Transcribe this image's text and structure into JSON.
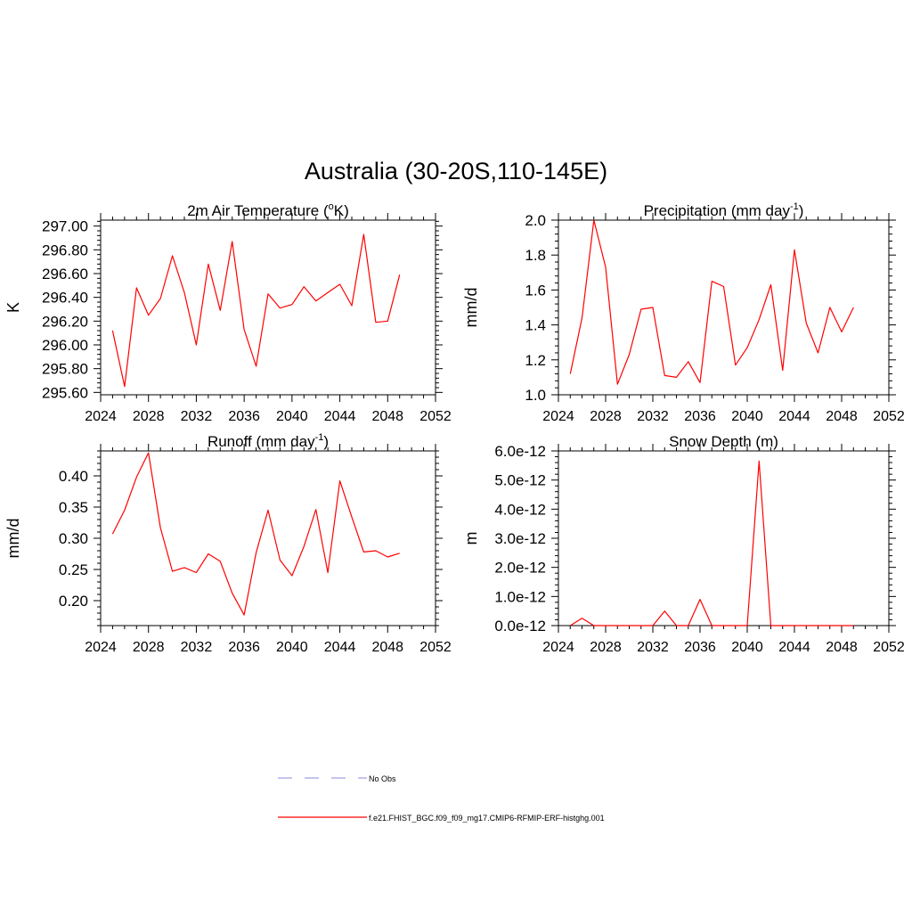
{
  "figure": {
    "title": "Australia (30-20S,110-145E)"
  },
  "legend": {
    "items": [
      {
        "label": "No Obs",
        "color": "#a0a0e6",
        "dash": true
      },
      {
        "label": "f.e21.FHIST_BGC.f09_f09_mg17.CMIP6-RFMIP-ERF-histghg.001",
        "color": "#ff0000",
        "dash": false
      }
    ]
  },
  "chart_data": [
    {
      "type": "line",
      "title_main": "2m Air Temperature (",
      "title_sup": "o",
      "title_tail": "K)",
      "ylabel": "K",
      "xlim": [
        2024,
        2052
      ],
      "ylim": [
        295.58,
        297.05
      ],
      "xticks": [
        "2024",
        "2028",
        "2032",
        "2036",
        "2040",
        "2044",
        "2048",
        "2052"
      ],
      "yticks": [
        {
          "v": 295.6,
          "label": "295.60"
        },
        {
          "v": 295.8,
          "label": "295.80"
        },
        {
          "v": 296.0,
          "label": "296.00"
        },
        {
          "v": 296.2,
          "label": "296.20"
        },
        {
          "v": 296.4,
          "label": "296.40"
        },
        {
          "v": 296.6,
          "label": "296.60"
        },
        {
          "v": 296.8,
          "label": "296.80"
        },
        {
          "v": 297.0,
          "label": "297.00"
        }
      ],
      "series": [
        {
          "color": "#ff0000",
          "x": [
            2025,
            2026,
            2027,
            2028,
            2029,
            2030,
            2031,
            2032,
            2033,
            2034,
            2035,
            2036,
            2037,
            2038,
            2039,
            2040,
            2041,
            2042,
            2043,
            2044,
            2045,
            2046,
            2047,
            2048,
            2049
          ],
          "y": [
            296.12,
            295.65,
            296.48,
            296.25,
            296.39,
            296.75,
            296.44,
            296.0,
            296.68,
            296.29,
            296.87,
            296.13,
            295.82,
            296.43,
            296.31,
            296.34,
            296.49,
            296.37,
            296.44,
            296.51,
            296.33,
            296.93,
            296.19,
            296.2,
            296.59
          ]
        }
      ]
    },
    {
      "type": "line",
      "title_main": "Precipitation (mm day",
      "title_sup": "-1",
      "title_tail": ")",
      "ylabel": "mm/d",
      "xlim": [
        2024,
        2052
      ],
      "ylim": [
        1.0,
        2.0
      ],
      "xticks": [
        "2024",
        "2028",
        "2032",
        "2036",
        "2040",
        "2044",
        "2048",
        "2052"
      ],
      "yticks": [
        {
          "v": 1.0,
          "label": "1.0"
        },
        {
          "v": 1.2,
          "label": "1.2"
        },
        {
          "v": 1.4,
          "label": "1.4"
        },
        {
          "v": 1.6,
          "label": "1.6"
        },
        {
          "v": 1.8,
          "label": "1.8"
        },
        {
          "v": 2.0,
          "label": "2.0"
        }
      ],
      "series": [
        {
          "color": "#ff0000",
          "x": [
            2025,
            2026,
            2027,
            2028,
            2029,
            2030,
            2031,
            2032,
            2033,
            2034,
            2035,
            2036,
            2037,
            2038,
            2039,
            2040,
            2041,
            2042,
            2043,
            2044,
            2045,
            2046,
            2047,
            2048,
            2049
          ],
          "y": [
            1.12,
            1.44,
            2.0,
            1.73,
            1.06,
            1.23,
            1.49,
            1.5,
            1.11,
            1.1,
            1.19,
            1.07,
            1.65,
            1.62,
            1.17,
            1.27,
            1.43,
            1.63,
            1.14,
            1.83,
            1.41,
            1.24,
            1.5,
            1.36,
            1.5
          ]
        }
      ]
    },
    {
      "type": "line",
      "title_main": "Runoff (mm day",
      "title_sup": "-1",
      "title_tail": ")",
      "ylabel": "mm/d",
      "xlim": [
        2024,
        2052
      ],
      "ylim": [
        0.16,
        0.44
      ],
      "xticks": [
        "2024",
        "2028",
        "2032",
        "2036",
        "2040",
        "2044",
        "2048",
        "2052"
      ],
      "yticks": [
        {
          "v": 0.2,
          "label": "0.20"
        },
        {
          "v": 0.25,
          "label": "0.25"
        },
        {
          "v": 0.3,
          "label": "0.30"
        },
        {
          "v": 0.35,
          "label": "0.35"
        },
        {
          "v": 0.4,
          "label": "0.40"
        }
      ],
      "series": [
        {
          "color": "#ff0000",
          "x": [
            2025,
            2026,
            2027,
            2028,
            2029,
            2030,
            2031,
            2032,
            2033,
            2034,
            2035,
            2036,
            2037,
            2038,
            2039,
            2040,
            2041,
            2042,
            2043,
            2044,
            2045,
            2046,
            2047,
            2048,
            2049
          ],
          "y": [
            0.307,
            0.345,
            0.398,
            0.437,
            0.317,
            0.247,
            0.253,
            0.245,
            0.275,
            0.263,
            0.212,
            0.177,
            0.277,
            0.345,
            0.265,
            0.24,
            0.287,
            0.346,
            0.245,
            0.392,
            0.334,
            0.278,
            0.28,
            0.27,
            0.276
          ]
        }
      ]
    },
    {
      "type": "line",
      "title_main": "Snow Depth (m)",
      "title_sup": "",
      "title_tail": "",
      "ylabel": "m",
      "xlim": [
        2024,
        2052
      ],
      "ylim": [
        0.0,
        6.0
      ],
      "xticks": [
        "2024",
        "2028",
        "2032",
        "2036",
        "2040",
        "2044",
        "2048",
        "2052"
      ],
      "yticks": [
        {
          "v": 0,
          "label": "0.0e-12"
        },
        {
          "v": 1,
          "label": "1.0e-12"
        },
        {
          "v": 2,
          "label": "2.0e-12"
        },
        {
          "v": 3,
          "label": "3.0e-12"
        },
        {
          "v": 4,
          "label": "4.0e-12"
        },
        {
          "v": 5,
          "label": "5.0e-12"
        },
        {
          "v": 6,
          "label": "6.0e-12"
        }
      ],
      "series": [
        {
          "color": "#ff0000",
          "x": [
            2025,
            2026,
            2027,
            2028,
            2029,
            2030,
            2031,
            2032,
            2033,
            2034,
            2035,
            2036,
            2037,
            2038,
            2039,
            2040,
            2041,
            2042,
            2043,
            2044,
            2045,
            2046,
            2047,
            2048,
            2049
          ],
          "y": [
            0,
            0.25,
            0,
            0,
            0,
            0,
            0,
            0,
            0.5,
            0,
            0,
            0.9,
            0,
            0,
            0,
            0,
            5.65,
            0,
            0,
            0,
            0,
            0,
            0,
            0,
            0
          ]
        }
      ]
    }
  ]
}
